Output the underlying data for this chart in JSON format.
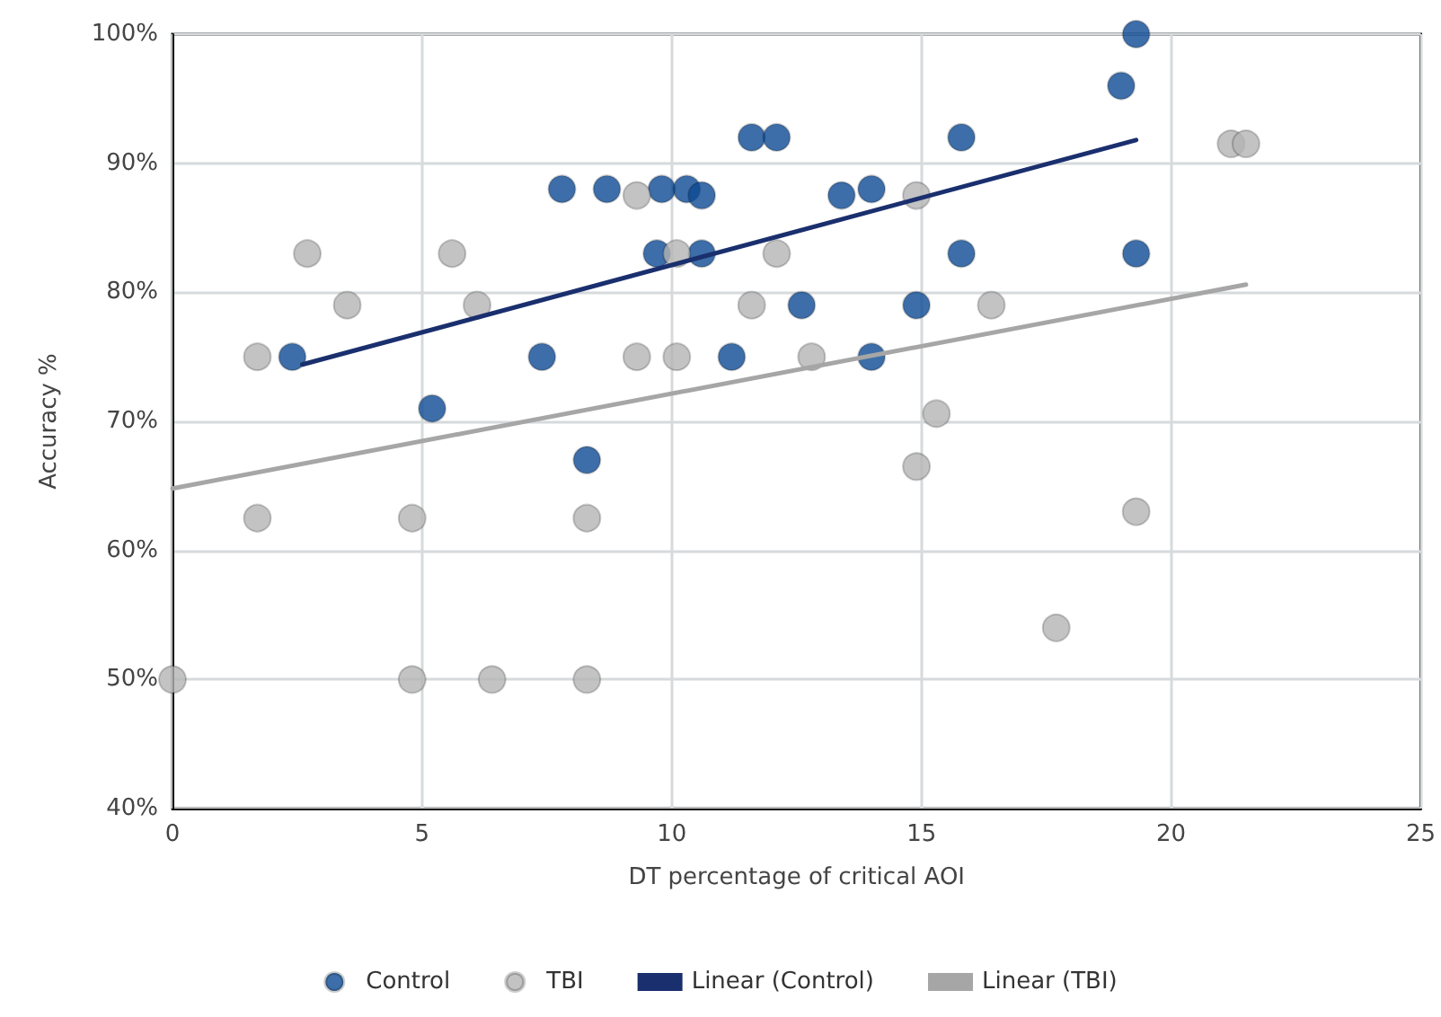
{
  "chart_data": {
    "type": "scatter",
    "xlabel": "DT percentage of critical AOI",
    "ylabel": "Accuracy %",
    "xlim": [
      0,
      25
    ],
    "xticks": [
      0,
      5,
      10,
      15,
      20,
      25
    ],
    "ylim": [
      40,
      100
    ],
    "yticks": [
      {
        "value": 40,
        "label": "40%"
      },
      {
        "value": 50,
        "label": "50%"
      },
      {
        "value": 60,
        "label": "60%"
      },
      {
        "value": 70,
        "label": "70%"
      },
      {
        "value": 80,
        "label": "80%"
      },
      {
        "value": 90,
        "label": "90%"
      },
      {
        "value": 100,
        "label": "100%"
      }
    ],
    "grid": true,
    "legend": "bottom",
    "marker": "circle",
    "series": [
      {
        "name": "Control",
        "color": "#0d4a94",
        "x": [
          2.4,
          5.2,
          7.4,
          8.3,
          7.8,
          8.7,
          9.8,
          10.3,
          10.6,
          9.7,
          10.6,
          11.6,
          12.1,
          11.2,
          15.8,
          19.3,
          19.0,
          13.4,
          14.0,
          15.8,
          19.3,
          12.6,
          14.9,
          14.0
        ],
        "values": [
          75,
          71,
          75,
          67,
          88,
          88,
          88,
          88,
          87.5,
          83,
          83,
          92,
          92,
          75,
          92,
          100,
          96,
          87.5,
          88,
          83,
          83,
          79,
          79,
          75
        ]
      },
      {
        "name": "TBI",
        "color": "#b4b4b4",
        "x": [
          0,
          1.7,
          1.7,
          2.7,
          3.5,
          5.6,
          6.1,
          4.8,
          4.8,
          6.4,
          8.3,
          8.3,
          9.3,
          9.3,
          10.1,
          10.1,
          11.6,
          12.1,
          12.8,
          14.9,
          16.4,
          15.3,
          14.9,
          19.3,
          17.7,
          21.2,
          21.5
        ],
        "values": [
          50,
          75,
          62.5,
          83,
          79,
          83,
          79,
          62.5,
          50,
          50,
          50,
          62.5,
          75,
          87.5,
          75,
          83,
          79,
          83,
          75,
          87.5,
          79,
          70.6,
          66.5,
          63,
          54,
          91.5,
          91.5
        ]
      },
      {
        "name": "Linear (Control)",
        "type": "line",
        "marker": "none",
        "color": "#1a2f6e",
        "x": [
          2.6,
          19.3
        ],
        "values": [
          74.4,
          91.8
        ]
      },
      {
        "name": "Linear (TBI)",
        "type": "line",
        "marker": "none",
        "color": "#a6a6a6",
        "x": [
          0,
          21.5
        ],
        "values": [
          64.8,
          80.6
        ]
      }
    ]
  }
}
